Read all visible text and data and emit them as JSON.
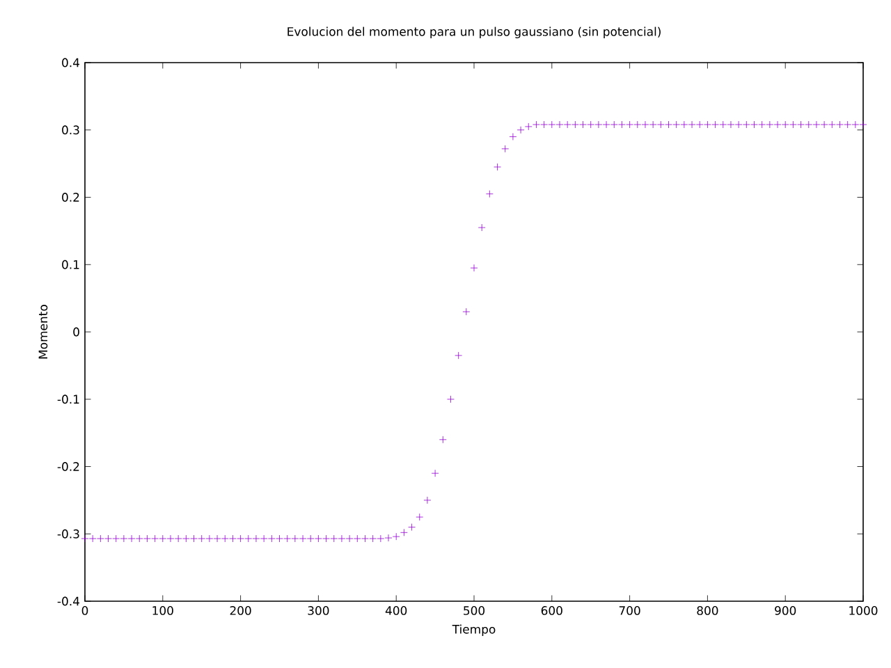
{
  "chart_data": {
    "type": "scatter",
    "title": "Evolucion del momento para un pulso gaussiano (sin potencial)",
    "xlabel": "Tiempo",
    "ylabel": "Momento",
    "x": [
      0,
      10,
      20,
      30,
      40,
      50,
      60,
      70,
      80,
      90,
      100,
      110,
      120,
      130,
      140,
      150,
      160,
      170,
      180,
      190,
      200,
      210,
      220,
      230,
      240,
      250,
      260,
      270,
      280,
      290,
      300,
      310,
      320,
      330,
      340,
      350,
      360,
      370,
      380,
      390,
      400,
      410,
      420,
      430,
      440,
      450,
      460,
      470,
      480,
      490,
      500,
      510,
      520,
      530,
      540,
      550,
      560,
      570,
      580,
      590,
      600,
      610,
      620,
      630,
      640,
      650,
      660,
      670,
      680,
      690,
      700,
      710,
      720,
      730,
      740,
      750,
      760,
      770,
      780,
      790,
      800,
      810,
      820,
      830,
      840,
      850,
      860,
      870,
      880,
      890,
      900,
      910,
      920,
      930,
      940,
      950,
      960,
      970,
      980,
      990,
      1000
    ],
    "values": [
      -0.307,
      -0.307,
      -0.307,
      -0.307,
      -0.307,
      -0.307,
      -0.307,
      -0.307,
      -0.307,
      -0.307,
      -0.307,
      -0.307,
      -0.307,
      -0.307,
      -0.307,
      -0.307,
      -0.307,
      -0.307,
      -0.307,
      -0.307,
      -0.307,
      -0.307,
      -0.307,
      -0.307,
      -0.307,
      -0.307,
      -0.307,
      -0.307,
      -0.307,
      -0.307,
      -0.307,
      -0.307,
      -0.307,
      -0.307,
      -0.307,
      -0.307,
      -0.307,
      -0.307,
      -0.307,
      -0.306,
      -0.304,
      -0.298,
      -0.29,
      -0.275,
      -0.25,
      -0.21,
      -0.16,
      -0.1,
      -0.035,
      0.03,
      0.095,
      0.155,
      0.205,
      0.245,
      0.272,
      0.29,
      0.3,
      0.305,
      0.308,
      0.308,
      0.308,
      0.308,
      0.308,
      0.308,
      0.308,
      0.308,
      0.308,
      0.308,
      0.308,
      0.308,
      0.308,
      0.308,
      0.308,
      0.308,
      0.308,
      0.308,
      0.308,
      0.308,
      0.308,
      0.308,
      0.308,
      0.308,
      0.308,
      0.308,
      0.308,
      0.308,
      0.308,
      0.308,
      0.308,
      0.308,
      0.308,
      0.308,
      0.308,
      0.308,
      0.308,
      0.308,
      0.308,
      0.308,
      0.308,
      0.308,
      0.308
    ],
    "color": "#9400d3",
    "marker": "cross",
    "xlim": [
      0,
      1000
    ],
    "xticks": [
      0,
      100,
      200,
      300,
      400,
      500,
      600,
      700,
      800,
      900,
      1000
    ],
    "ylim": [
      -0.4,
      0.4
    ],
    "yticks": [
      -0.4,
      -0.3,
      -0.2,
      -0.1,
      0,
      0.1,
      0.2,
      0.3,
      0.4
    ]
  }
}
